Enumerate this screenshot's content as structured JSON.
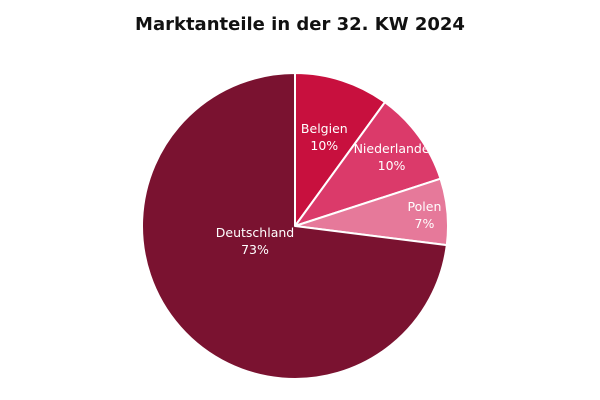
{
  "chart_data": {
    "type": "pie",
    "title": "Marktanteile in der 32. KW 2024",
    "slices": [
      {
        "label": "Belgien",
        "value": 10,
        "value_label": "10%",
        "color": "#C8103E"
      },
      {
        "label": "Niederlande",
        "value": 10,
        "value_label": "10%",
        "color": "#DB3A6A"
      },
      {
        "label": "Polen",
        "value": 7,
        "value_label": "7%",
        "color": "#E6799A"
      },
      {
        "label": "Deutschland",
        "value": 73,
        "value_label": "73%",
        "color": "#7A1230"
      }
    ],
    "start_angle_deg": 0,
    "direction": "clockwise",
    "legend": "none",
    "separator_color": "#ffffff"
  }
}
